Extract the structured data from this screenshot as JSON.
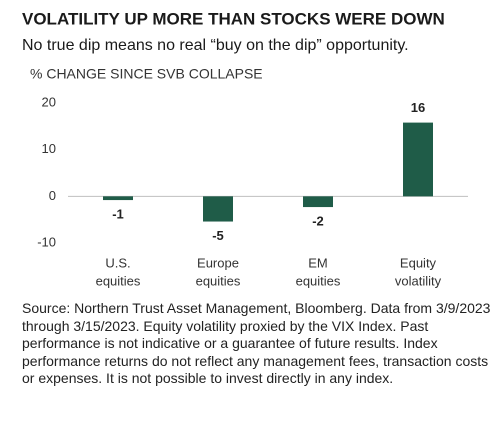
{
  "chart_data": {
    "type": "bar",
    "title": "VOLATILITY UP MORE THAN STOCKS WERE DOWN",
    "subtitle": "No true dip means no real “buy on the dip” opportunity.",
    "y_label": "% CHANGE SINCE SVB COLLAPSE",
    "categories": [
      [
        "U.S.",
        "equities"
      ],
      [
        "Europe",
        "equities"
      ],
      [
        "EM",
        "equities"
      ],
      [
        "Equity",
        "volatility"
      ]
    ],
    "values": [
      -0.8,
      -5.4,
      -2.3,
      15.8
    ],
    "value_labels": [
      "-1",
      "-5",
      "-2",
      "16"
    ],
    "color": "#1f5c48",
    "ylim": [
      -10,
      20
    ],
    "yticks": [
      -10,
      0,
      10,
      20
    ],
    "source": "Source: Northern Trust Asset Management, Bloomberg. Data from 3/9/2023 through 3/15/2023. Equity volatility proxied by the VIX Index. Past performance is not indicative or a guarantee of future results. Index performance returns do not reflect any management fees, transaction costs or expenses. It is not possible to invest directly in any index."
  }
}
